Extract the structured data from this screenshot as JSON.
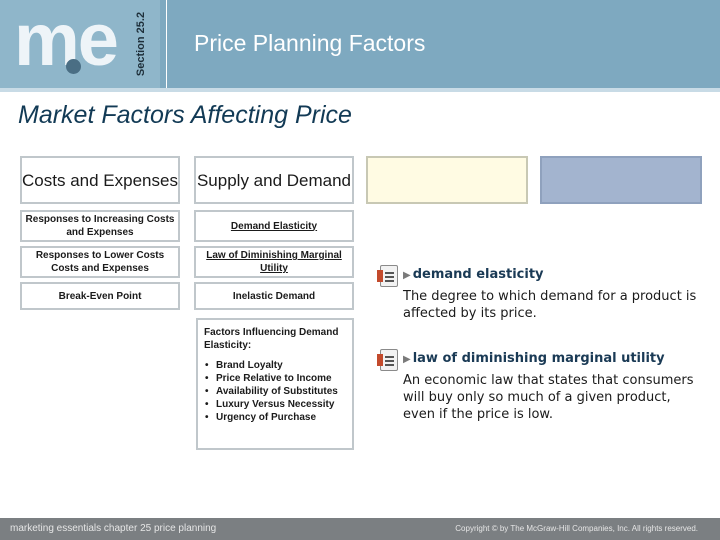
{
  "header": {
    "logo": "me",
    "section_label": "Section 25.2",
    "title": "Price Planning Factors"
  },
  "subtitle": "Market Factors Affecting Price",
  "columns": {
    "costs": {
      "heading": "Costs and Expenses",
      "items": [
        "Responses to Increasing Costs and Expenses",
        "Responses to Lower Costs Costs and Expenses",
        "Break-Even Point"
      ]
    },
    "supply": {
      "heading": "Supply and Demand",
      "items": [
        "Demand Elasticity",
        "Law of Diminishing Marginal Utility",
        "Inelastic Demand"
      ]
    },
    "factors": {
      "heading": "Factors Influencing Demand Elasticity:",
      "list": [
        "Brand Loyalty",
        "Price Relative to Income",
        "Availability of Substitutes",
        "Luxury Versus Necessity",
        "Urgency of Purchase"
      ]
    }
  },
  "definitions": [
    {
      "icon": "document-icon",
      "term": "demand elasticity",
      "text": "The degree to which demand for a product is affected by its price."
    },
    {
      "icon": "document-icon",
      "term": "law of diminishing marginal utility",
      "text": "An economic law that states that consumers will buy only so much of a given product, even if the price is low."
    }
  ],
  "footer": {
    "left": "marketing essentials  chapter 25  price planning",
    "right": "Copyright © by The McGraw-Hill Companies, Inc. All rights reserved."
  },
  "colors": {
    "header": "#7ea9c0",
    "title_text": "#123a55",
    "yellow_box": "#fffbe3",
    "blue_box": "#a3b4cf",
    "footer": "#7b7f82"
  }
}
